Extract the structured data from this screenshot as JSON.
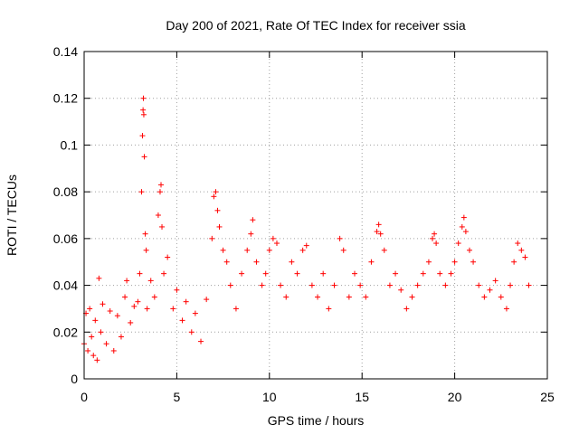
{
  "chart_data": {
    "type": "scatter",
    "title": "Day 200 of 2021, Rate Of TEC Index for receiver ssia",
    "xlabel": "GPS time / hours",
    "ylabel": "ROTI / TECUs",
    "xlim": [
      0,
      25
    ],
    "ylim": [
      0,
      0.14
    ],
    "xticks": [
      0,
      5,
      10,
      15,
      20,
      25
    ],
    "xtick_labels": [
      "0",
      "5",
      "10",
      "15",
      "20",
      "25"
    ],
    "yticks": [
      0,
      0.02,
      0.04,
      0.06,
      0.08,
      0.1,
      0.12,
      0.14
    ],
    "ytick_labels": [
      "0",
      "0.02",
      "0.04",
      "0.06",
      "0.08",
      "0.1",
      "0.12",
      "0.14"
    ],
    "grid": true,
    "marker": "+",
    "color": "#ff0000",
    "series": [
      {
        "name": "ROTI",
        "points": [
          [
            0.0,
            0.015
          ],
          [
            0.1,
            0.028
          ],
          [
            0.2,
            0.012
          ],
          [
            0.3,
            0.03
          ],
          [
            0.4,
            0.018
          ],
          [
            0.5,
            0.01
          ],
          [
            0.6,
            0.025
          ],
          [
            0.7,
            0.008
          ],
          [
            0.8,
            0.043
          ],
          [
            0.9,
            0.02
          ],
          [
            1.0,
            0.032
          ],
          [
            1.2,
            0.015
          ],
          [
            1.4,
            0.029
          ],
          [
            1.6,
            0.012
          ],
          [
            1.8,
            0.027
          ],
          [
            2.0,
            0.018
          ],
          [
            2.2,
            0.035
          ],
          [
            2.3,
            0.042
          ],
          [
            2.5,
            0.024
          ],
          [
            2.7,
            0.031
          ],
          [
            2.9,
            0.033
          ],
          [
            3.0,
            0.045
          ],
          [
            3.1,
            0.08
          ],
          [
            3.15,
            0.104
          ],
          [
            3.18,
            0.115
          ],
          [
            3.2,
            0.12
          ],
          [
            3.22,
            0.113
          ],
          [
            3.25,
            0.095
          ],
          [
            3.3,
            0.062
          ],
          [
            3.35,
            0.055
          ],
          [
            3.4,
            0.03
          ],
          [
            3.6,
            0.042
          ],
          [
            3.8,
            0.035
          ],
          [
            4.0,
            0.07
          ],
          [
            4.1,
            0.08
          ],
          [
            4.15,
            0.083
          ],
          [
            4.2,
            0.065
          ],
          [
            4.3,
            0.045
          ],
          [
            4.5,
            0.052
          ],
          [
            4.8,
            0.03
          ],
          [
            5.0,
            0.038
          ],
          [
            5.3,
            0.025
          ],
          [
            5.5,
            0.033
          ],
          [
            5.8,
            0.02
          ],
          [
            6.0,
            0.028
          ],
          [
            6.3,
            0.016
          ],
          [
            6.6,
            0.034
          ],
          [
            6.9,
            0.06
          ],
          [
            7.0,
            0.078
          ],
          [
            7.1,
            0.08
          ],
          [
            7.2,
            0.072
          ],
          [
            7.3,
            0.065
          ],
          [
            7.5,
            0.055
          ],
          [
            7.7,
            0.05
          ],
          [
            7.9,
            0.04
          ],
          [
            8.2,
            0.03
          ],
          [
            8.5,
            0.045
          ],
          [
            8.8,
            0.055
          ],
          [
            9.0,
            0.062
          ],
          [
            9.1,
            0.068
          ],
          [
            9.3,
            0.05
          ],
          [
            9.6,
            0.04
          ],
          [
            9.8,
            0.045
          ],
          [
            10.0,
            0.055
          ],
          [
            10.2,
            0.06
          ],
          [
            10.4,
            0.058
          ],
          [
            10.6,
            0.04
          ],
          [
            10.9,
            0.035
          ],
          [
            11.2,
            0.05
          ],
          [
            11.5,
            0.045
          ],
          [
            11.8,
            0.055
          ],
          [
            12.0,
            0.057
          ],
          [
            12.3,
            0.04
          ],
          [
            12.6,
            0.035
          ],
          [
            12.9,
            0.045
          ],
          [
            13.2,
            0.03
          ],
          [
            13.5,
            0.04
          ],
          [
            13.8,
            0.06
          ],
          [
            14.0,
            0.055
          ],
          [
            14.3,
            0.035
          ],
          [
            14.6,
            0.045
          ],
          [
            14.9,
            0.04
          ],
          [
            15.2,
            0.035
          ],
          [
            15.5,
            0.05
          ],
          [
            15.8,
            0.063
          ],
          [
            15.9,
            0.066
          ],
          [
            16.0,
            0.062
          ],
          [
            16.2,
            0.055
          ],
          [
            16.5,
            0.04
          ],
          [
            16.8,
            0.045
          ],
          [
            17.1,
            0.038
          ],
          [
            17.4,
            0.03
          ],
          [
            17.7,
            0.035
          ],
          [
            18.0,
            0.04
          ],
          [
            18.3,
            0.045
          ],
          [
            18.6,
            0.05
          ],
          [
            18.8,
            0.06
          ],
          [
            18.9,
            0.062
          ],
          [
            19.0,
            0.058
          ],
          [
            19.2,
            0.045
          ],
          [
            19.5,
            0.04
          ],
          [
            19.8,
            0.045
          ],
          [
            20.0,
            0.05
          ],
          [
            20.2,
            0.058
          ],
          [
            20.4,
            0.065
          ],
          [
            20.5,
            0.069
          ],
          [
            20.6,
            0.063
          ],
          [
            20.8,
            0.055
          ],
          [
            21.0,
            0.05
          ],
          [
            21.3,
            0.04
          ],
          [
            21.6,
            0.035
          ],
          [
            21.9,
            0.038
          ],
          [
            22.2,
            0.042
          ],
          [
            22.5,
            0.035
          ],
          [
            22.8,
            0.03
          ],
          [
            23.0,
            0.04
          ],
          [
            23.2,
            0.05
          ],
          [
            23.4,
            0.058
          ],
          [
            23.6,
            0.055
          ],
          [
            23.8,
            0.052
          ],
          [
            24.0,
            0.04
          ]
        ]
      }
    ]
  }
}
